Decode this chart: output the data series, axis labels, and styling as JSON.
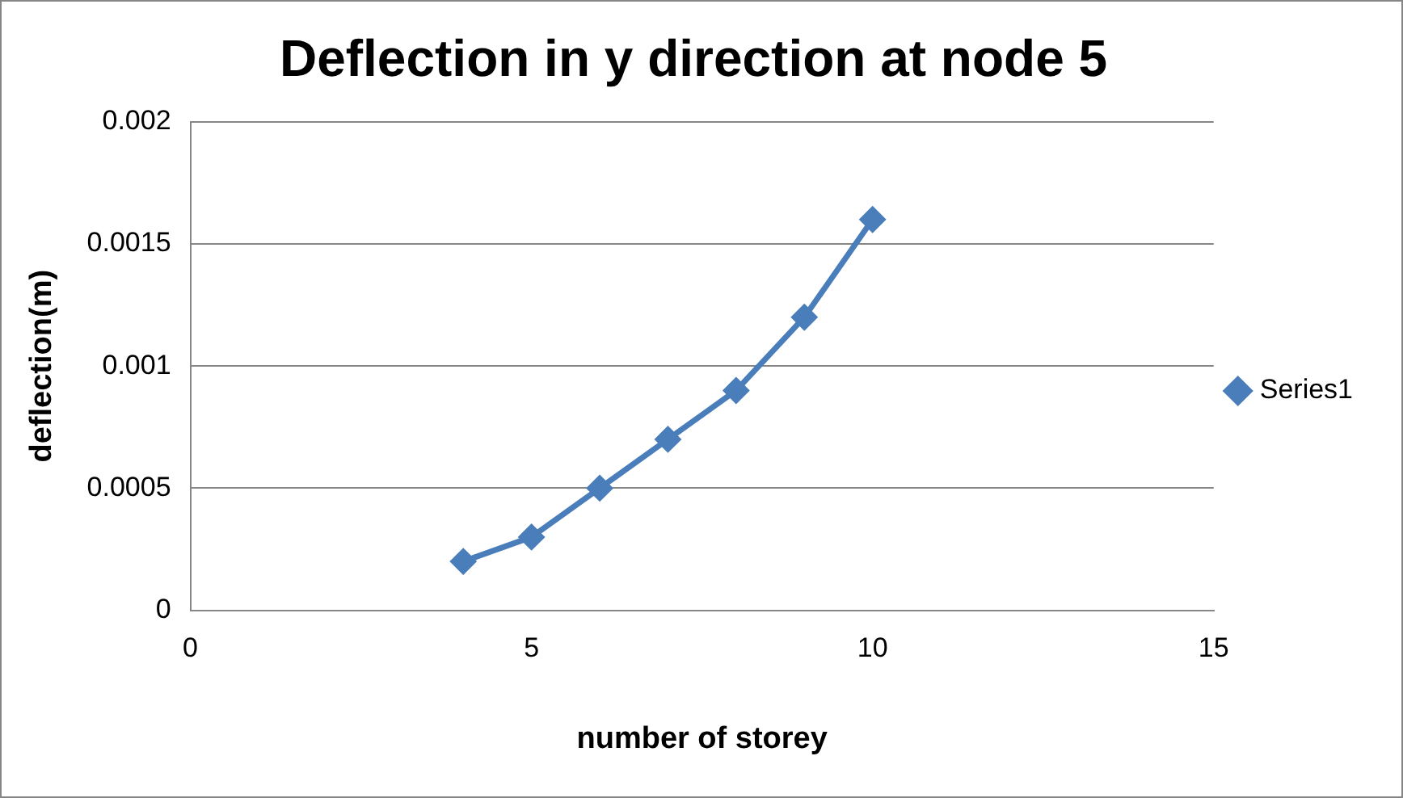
{
  "chart_data": {
    "type": "line",
    "title": "Deflection in y direction at node 5",
    "xlabel": "number of storey",
    "ylabel": "deflection(m)",
    "x": [
      4,
      5,
      6,
      7,
      8,
      9,
      10
    ],
    "series": [
      {
        "name": "Series1",
        "color": "#4a7ebb",
        "values": [
          0.0002,
          0.0003,
          0.0005,
          0.0007,
          0.0009,
          0.0012,
          0.0016
        ]
      }
    ],
    "xlim": [
      0,
      15
    ],
    "xticks": [
      0,
      5,
      10,
      15
    ],
    "ylim": [
      0,
      0.002
    ],
    "yticks": [
      0,
      0.0005,
      0.001,
      0.0015,
      0.002
    ],
    "grid": "y",
    "legend": "right",
    "marker": "diamond",
    "line_style": "solid"
  }
}
